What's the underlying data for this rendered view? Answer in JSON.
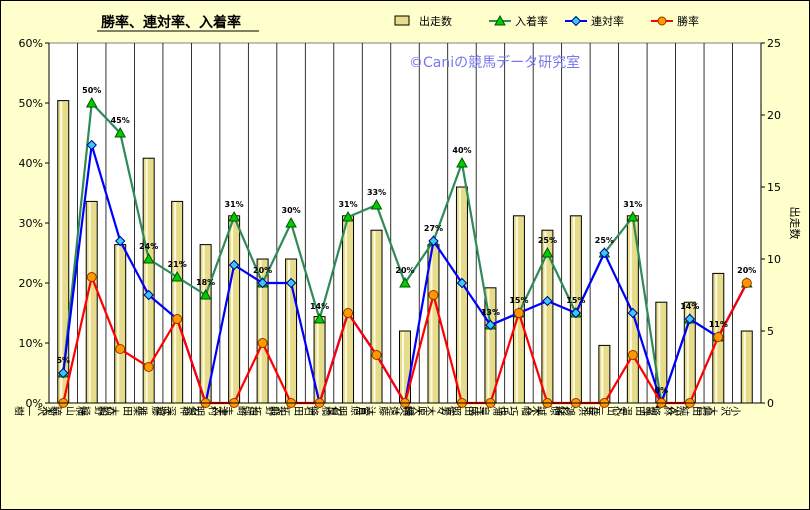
{
  "chart_data": {
    "type": "bar",
    "title": "勝率、連対率、入着率",
    "watermark": "©Caniの競馬データ研究室",
    "y2label": "出走数",
    "ylim": [
      0,
      60
    ],
    "y2lim": [
      0,
      25
    ],
    "yticks": [
      "0%",
      "10%",
      "20%",
      "30%",
      "40%",
      "50%",
      "60%"
    ],
    "y2ticks": [
      "0",
      "5",
      "10",
      "15",
      "20",
      "25"
    ],
    "legend_position": "top",
    "grid": "vertical",
    "categories": [
      "菊沢 一樹",
      "横山 琉人",
      "荻野 極",
      "柴田 大知",
      "武藤 雅",
      "石神 深道",
      "津村 明秀",
      "戸崎 圭太",
      "大野 拓弥",
      "石田 拓郎",
      "石橋 脩",
      "菅原 明良",
      "遠藤 汰月",
      "原 優介",
      "佐々木 大輔",
      "江田 照男",
      "三浦 皇成",
      "木幡 巧也",
      "杉原 誠人",
      "長浜 鴻緒",
      "丸山 元気",
      "亀田 温心",
      "小林 脩斗",
      "嶋田 純次",
      "小沢 大仁"
    ],
    "series": [
      {
        "name": "出走数",
        "type": "bar",
        "axis": "right",
        "color": "#e6dc8c",
        "values": [
          21,
          14,
          11,
          17,
          14,
          11,
          13,
          10,
          10,
          6,
          13,
          12,
          5,
          11,
          15,
          8,
          13,
          12,
          13,
          4,
          13,
          7,
          7,
          9,
          5
        ]
      },
      {
        "name": "入着率",
        "type": "line",
        "axis": "left",
        "color": "#2e8b57",
        "marker": "triangle",
        "marker_color": "#00cc00",
        "values": [
          5,
          50,
          45,
          24,
          21,
          18,
          31,
          20,
          30,
          14,
          31,
          33,
          20,
          27,
          40,
          13,
          15,
          25,
          15,
          25,
          31,
          0,
          14,
          11,
          20
        ]
      },
      {
        "name": "連対率",
        "type": "line",
        "axis": "left",
        "color": "#0000ff",
        "marker": "diamond",
        "marker_color": "#33ccff",
        "values": [
          5,
          43,
          27,
          18,
          14,
          0,
          23,
          20,
          20,
          0,
          15,
          8,
          0,
          27,
          20,
          13,
          15,
          17,
          15,
          25,
          15,
          0,
          14,
          11,
          20
        ]
      },
      {
        "name": "勝率",
        "type": "line",
        "axis": "left",
        "color": "#ff0000",
        "marker": "circle",
        "marker_color": "#ff9900",
        "values": [
          0,
          21,
          9,
          6,
          14,
          0,
          0,
          10,
          0,
          0,
          15,
          8,
          0,
          18,
          0,
          0,
          15,
          0,
          0,
          0,
          8,
          0,
          0,
          11,
          20
        ]
      }
    ],
    "data_labels": [
      "5%",
      "50%",
      "45%",
      "24%",
      "21%",
      "18%",
      "31%",
      "20%",
      "30%",
      "14%",
      "31%",
      "33%",
      "20%",
      "27%",
      "40%",
      "13%",
      "15%",
      "25%",
      "15%",
      "25%",
      "31%",
      "0%",
      "14%",
      "11%",
      "20%"
    ]
  }
}
